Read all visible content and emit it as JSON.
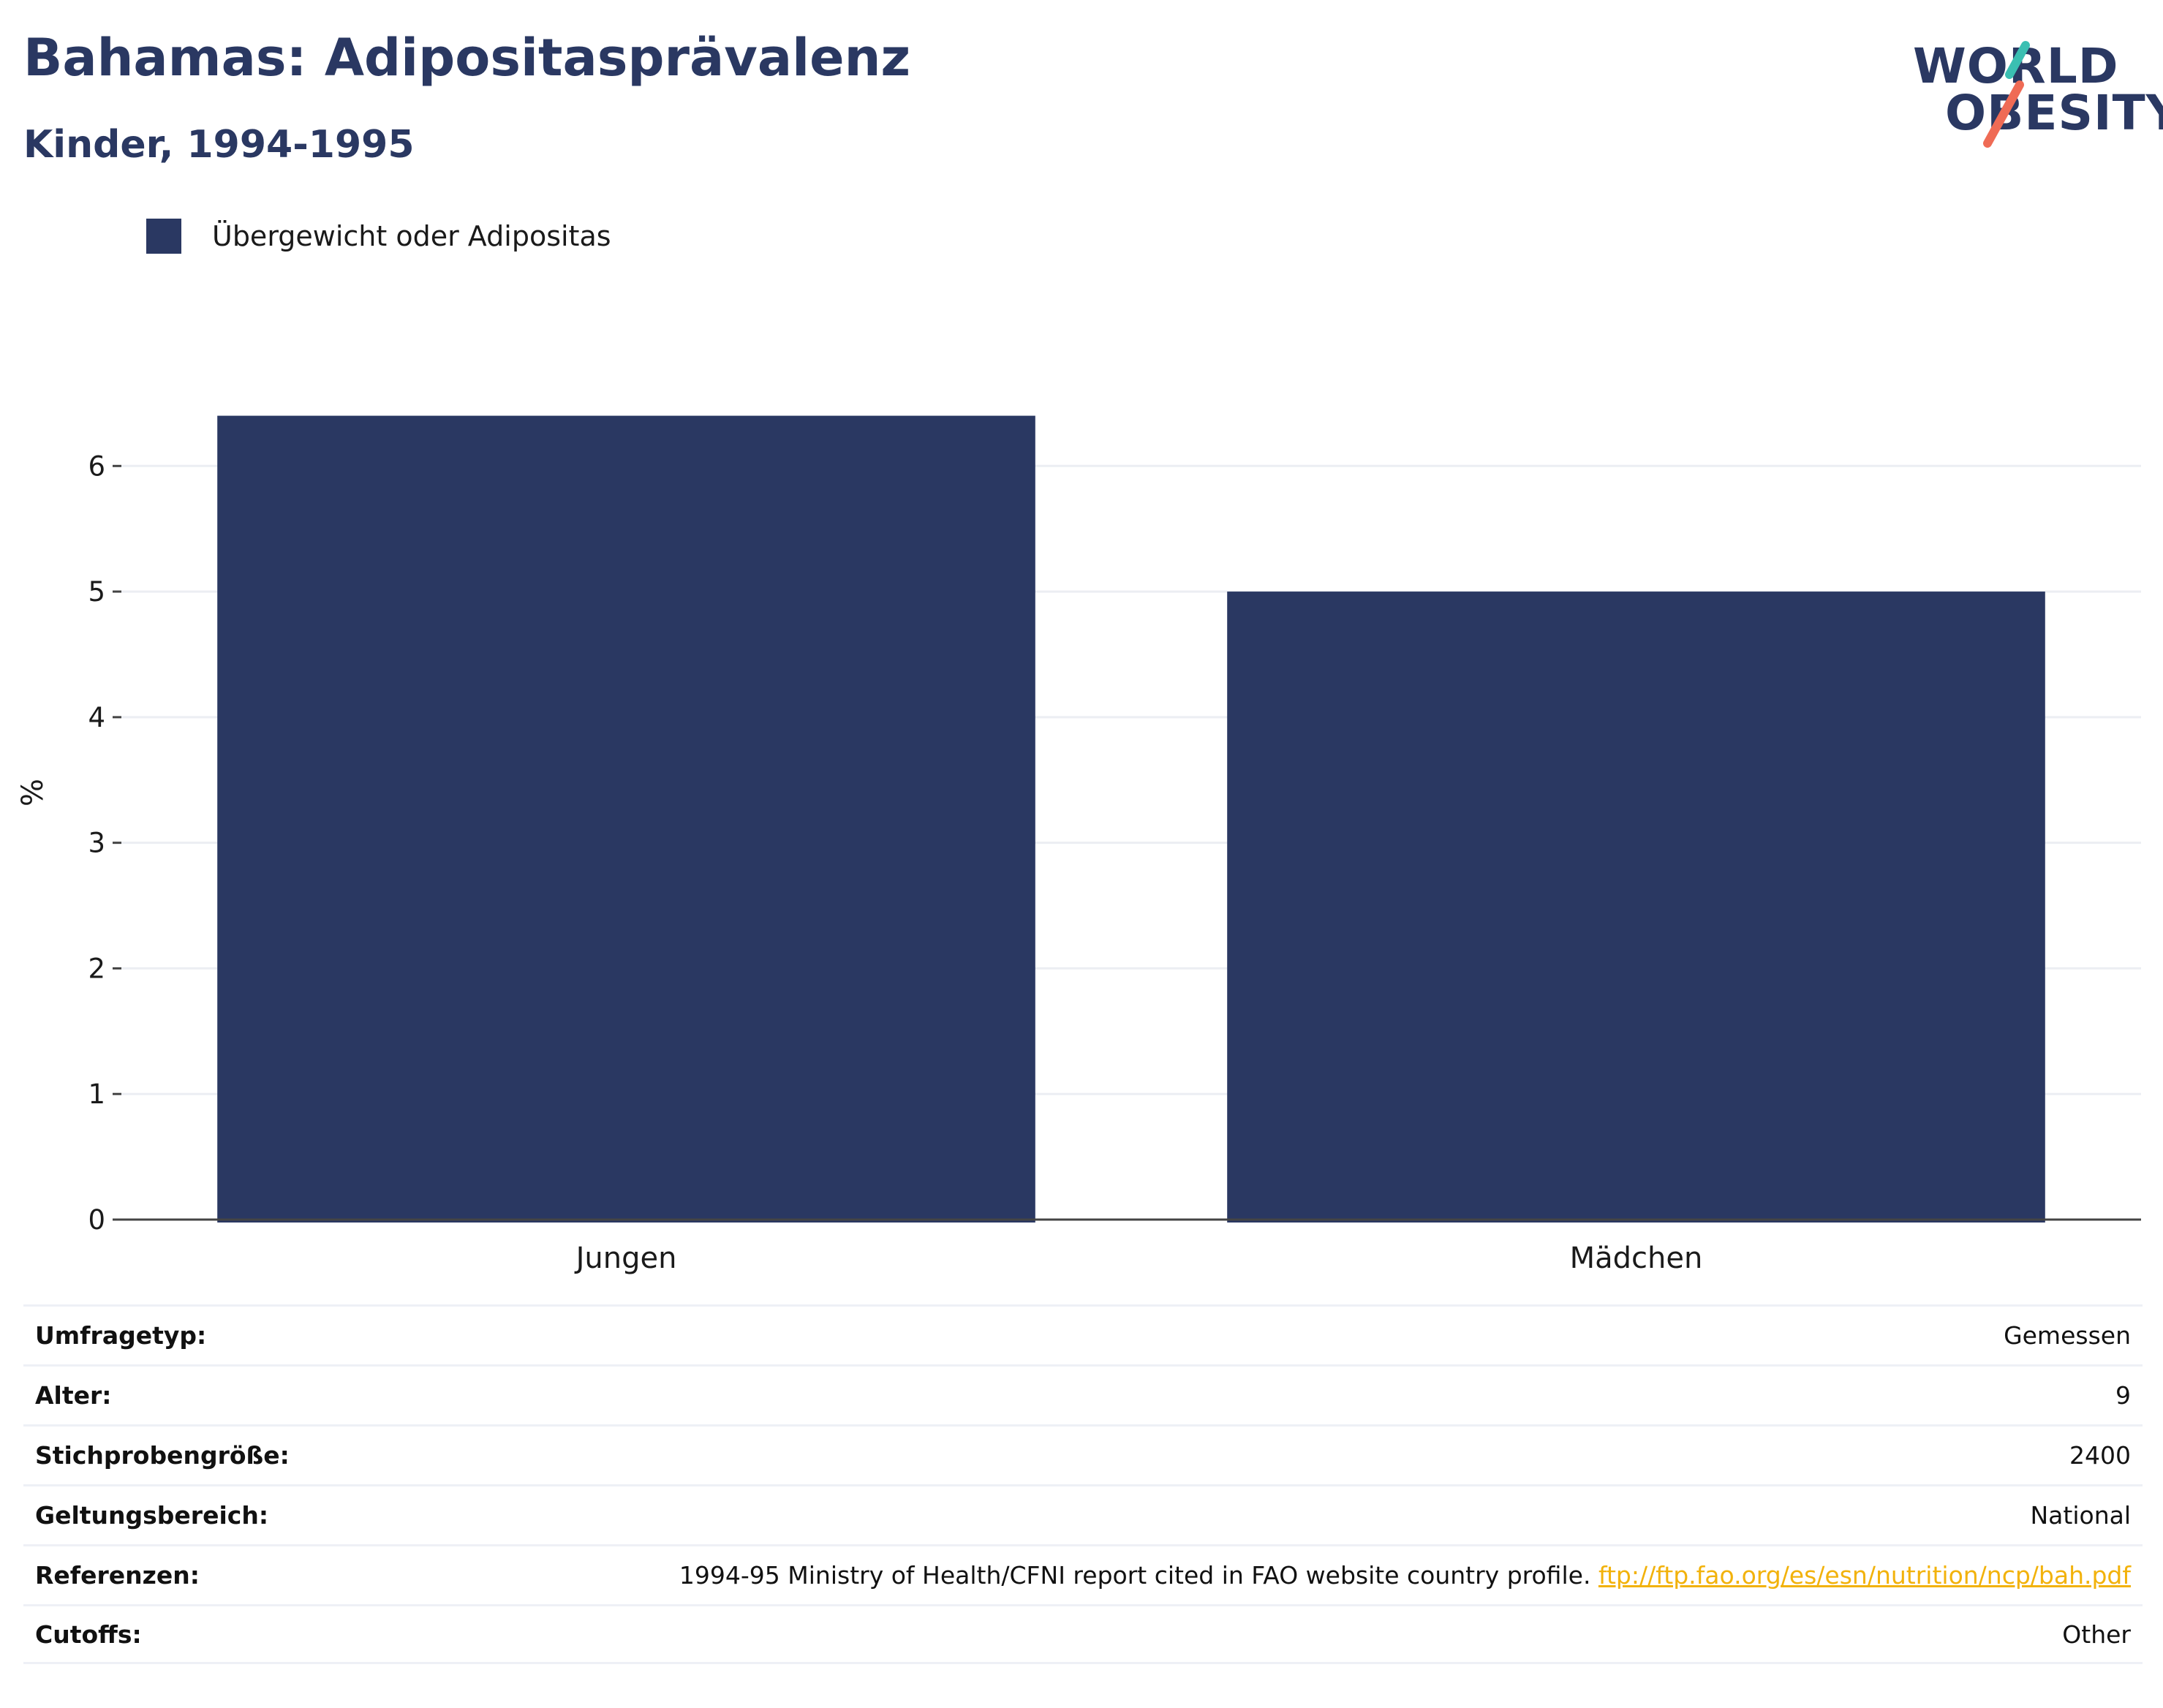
{
  "header": {
    "title": "Bahamas: Adipositasprävalenz",
    "subtitle": "Kinder, 1994-1995"
  },
  "logo": {
    "line1": "WORLD",
    "line2": "OBESITY",
    "colors": {
      "text": "#2a3862",
      "slash_teal": "#3bbfb2",
      "slash_coral": "#ef6b55"
    }
  },
  "chart_data": {
    "type": "bar",
    "categories": [
      "Jungen",
      "Mädchen"
    ],
    "series": [
      {
        "name": "Übergewicht oder Adipositas",
        "values": [
          6.4,
          5.0
        ],
        "color": "#2a3862"
      }
    ],
    "ylabel": "%",
    "ylim": [
      0,
      6.45
    ],
    "yticks": [
      0,
      1,
      2,
      3,
      4,
      5,
      6
    ],
    "grid": true,
    "legend": "top-left"
  },
  "info": [
    {
      "key": "Umfragetyp:",
      "value": "Gemessen"
    },
    {
      "key": "Alter:",
      "value": "9"
    },
    {
      "key": "Stichprobengröße:",
      "value": "2400"
    },
    {
      "key": "Geltungsbereich:",
      "value": "National"
    },
    {
      "key": "Referenzen:",
      "value": "1994-95 Ministry of Health/CFNI report cited in FAO website country profile.",
      "link": "ftp://ftp.fao.org/es/esn/nutrition/ncp/bah.pdf"
    },
    {
      "key": "Cutoffs:",
      "value": "Other"
    }
  ]
}
